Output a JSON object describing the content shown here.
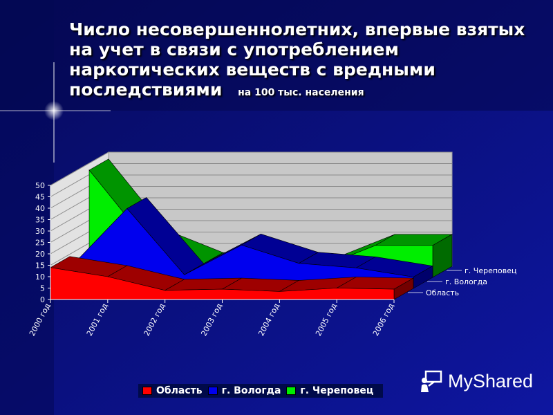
{
  "slide": {
    "title": "Число несовершеннолетних, впервые взятых на учет в связи с употреблением наркотических веществ с вредными последствиями",
    "subtitle": "на 100 тыс. населения"
  },
  "watermark": {
    "text": "MyShared",
    "icon": "presenter-icon"
  },
  "colors": {
    "background": "#0a0f7a",
    "oblast": "#ff0000",
    "vologda": "#0000ee",
    "cherepovets": "#00ee00",
    "wall": "#c8c8c8"
  },
  "chart_data": {
    "type": "area",
    "three_d": true,
    "categories": [
      "2000 год",
      "2001 год",
      "2002 год",
      "2003 год",
      "2004 год",
      "2005 год",
      "2006 год"
    ],
    "ylim": [
      0,
      50
    ],
    "yticks": [
      0,
      5,
      10,
      15,
      20,
      25,
      30,
      35,
      40,
      45,
      50
    ],
    "grid": true,
    "legend_position": "bottom",
    "series": [
      {
        "name": "Область",
        "color": "#ff0000",
        "values": [
          14,
          10,
          4,
          4.5,
          3.5,
          5,
          4.5
        ]
      },
      {
        "name": "г. Вологда",
        "color": "#0000ee",
        "values": [
          9,
          35,
          6,
          19,
          11,
          9,
          5
        ]
      },
      {
        "name": "г. Череповец",
        "color": "#00ee00",
        "values": [
          47,
          16,
          6,
          6,
          4,
          14,
          14
        ]
      }
    ]
  }
}
